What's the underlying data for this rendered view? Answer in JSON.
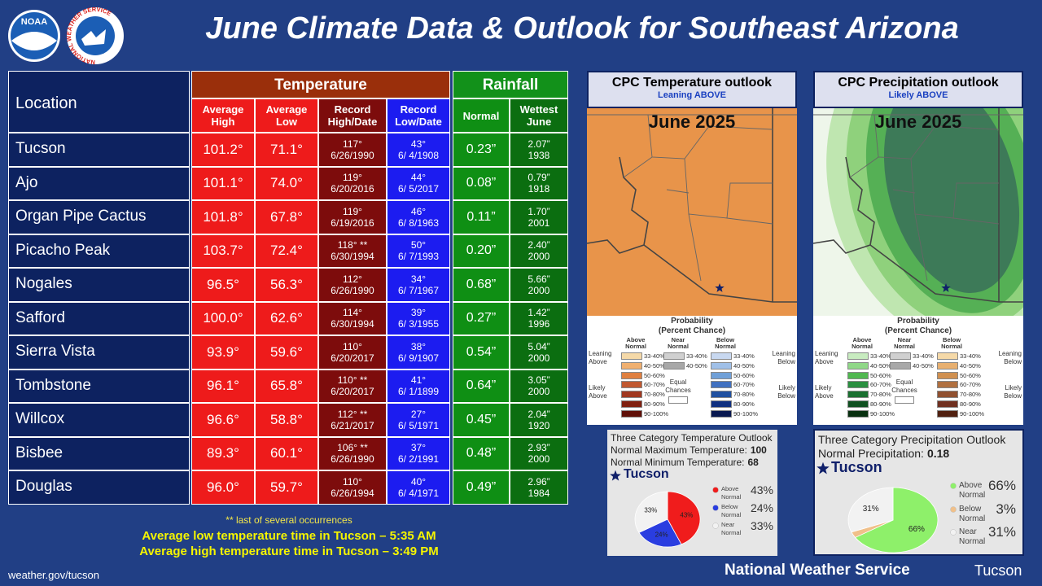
{
  "header": {
    "title": "June Climate Data & Outlook for Southeast Arizona",
    "logo_noaa": "NOAA",
    "logo_nws": "NATIONAL WEATHER SERVICE"
  },
  "table": {
    "location_header": "Location",
    "groups": [
      "Temperature",
      "Rainfall"
    ],
    "columns": [
      "Average High",
      "Average Low",
      "Record High/Date",
      "Record Low/Date",
      "Normal",
      "Wettest June"
    ],
    "rows": [
      [
        "Tucson",
        "101.2°",
        "71.1°",
        "117°",
        "6/26/1990",
        "43°",
        "6/ 4/1908",
        "0.23”",
        "2.07”",
        "1938"
      ],
      [
        "Ajo",
        "101.1°",
        "74.0°",
        "119°",
        "6/20/2016",
        "44°",
        "6/ 5/2017",
        "0.08”",
        "0.79”",
        "1918"
      ],
      [
        "Organ Pipe Cactus",
        "101.8°",
        "67.8°",
        "119°",
        "6/19/2016",
        "46°",
        "6/ 8/1963",
        "0.11”",
        "1.70”",
        "2001"
      ],
      [
        "Picacho Peak",
        "103.7°",
        "72.4°",
        "118° **",
        "6/30/1994",
        "50°",
        "6/ 7/1993",
        "0.20”",
        "2.40”",
        "2000"
      ],
      [
        "Nogales",
        "96.5°",
        "56.3°",
        "112°",
        "6/26/1990",
        "34°",
        "6/ 7/1967",
        "0.68”",
        "5.66”",
        "2000"
      ],
      [
        "Safford",
        "100.0°",
        "62.6°",
        "114°",
        "6/30/1994",
        "39°",
        "6/ 3/1955",
        "0.27”",
        "1.42”",
        "1996"
      ],
      [
        "Sierra Vista",
        "93.9°",
        "59.6°",
        "110°",
        "6/20/2017",
        "38°",
        "6/ 9/1907",
        "0.54”",
        "5.04”",
        "2000"
      ],
      [
        "Tombstone",
        "96.1°",
        "65.8°",
        "110° **",
        "6/20/2017",
        "41°",
        "6/ 1/1899",
        "0.64”",
        "3.05”",
        "2000"
      ],
      [
        "Willcox",
        "96.6°",
        "58.8°",
        "112° **",
        "6/21/2017",
        "27°",
        "6/ 5/1971",
        "0.45”",
        "2.04”",
        "1920"
      ],
      [
        "Bisbee",
        "89.3°",
        "60.1°",
        "106° **",
        "6/26/1990",
        "37°",
        "6/ 2/1991",
        "0.48”",
        "2.93”",
        "2000"
      ],
      [
        "Douglas",
        "96.0°",
        "59.7°",
        "110°",
        "6/26/1994",
        "40°",
        "6/ 4/1971",
        "0.49”",
        "2.96”",
        "1984"
      ]
    ]
  },
  "notes": [
    "** last of several occurrences",
    "Average low temperature time in Tucson – 5:35 AM",
    "Average high temperature time in Tucson – 3:49 PM"
  ],
  "footer": {
    "url": "weather.gov/tucson",
    "agency": "National Weather Service",
    "office": "Tucson"
  },
  "maps": [
    {
      "title": "CPC Temperature outlook",
      "subtitle": "Leaning ABOVE",
      "month": "June 2025",
      "legend": {
        "title": [
          "Probability",
          "(Percent Chance)"
        ],
        "columns": [
          "Above Normal",
          "Near Normal",
          "Below Normal"
        ],
        "above_ranges": [
          "33-40%",
          "40-50%",
          "50-60%",
          "60-70%",
          "70-80%",
          "80-90%",
          "90-100%"
        ],
        "above_colors": [
          "#f5d9a8",
          "#f0b070",
          "#e08040",
          "#c05830",
          "#a03820",
          "#802010",
          "#601008"
        ],
        "near_ranges": [
          "33-40%",
          "40-50%"
        ],
        "near_colors": [
          "#d0d0d0",
          "#a8a8a8"
        ],
        "below_ranges": [
          "33-40%",
          "40-50%",
          "50-60%",
          "60-70%",
          "70-80%",
          "80-90%",
          "90-100%"
        ],
        "below_colors": [
          "#c8d8f0",
          "#a0c0e8",
          "#70a0d8",
          "#4070c0",
          "#2050a0",
          "#103080",
          "#081850"
        ],
        "sides": [
          "Leaning Above",
          "Likely Above",
          "Equal Chances",
          "Leaning Below",
          "Likely Below"
        ]
      }
    },
    {
      "title": "CPC Precipitation outlook",
      "subtitle": "Likely ABOVE",
      "month": "June 2025",
      "legend": {
        "title": [
          "Probability",
          "(Percent Chance)"
        ],
        "columns": [
          "Above Normal",
          "Near Normal",
          "Below Normal"
        ],
        "above_ranges": [
          "33-40%",
          "40-50%",
          "50-60%",
          "60-70%",
          "70-80%",
          "80-90%",
          "90-100%"
        ],
        "above_colors": [
          "#c8ecc0",
          "#90d888",
          "#50b850",
          "#2a9040",
          "#1a7030",
          "#105020",
          "#083010"
        ],
        "near_ranges": [
          "33-40%",
          "40-50%"
        ],
        "near_colors": [
          "#d0d0d0",
          "#a8a8a8"
        ],
        "below_ranges": [
          "33-40%",
          "40-50%",
          "50-60%",
          "60-70%",
          "70-80%",
          "80-90%",
          "90-100%"
        ],
        "below_colors": [
          "#f5d9a8",
          "#e8b070",
          "#d09050",
          "#b07040",
          "#905030",
          "#703020",
          "#502010"
        ],
        "sides": [
          "Leaning Above",
          "Likely Above",
          "Equal Chances",
          "Leaning Below",
          "Likely Below"
        ]
      }
    }
  ],
  "chart_data": [
    {
      "type": "pie",
      "title": "Three Category Temperature Outlook",
      "notes": [
        {
          "label": "Normal Maximum Temperature:",
          "value": 100
        },
        {
          "label": "Normal Minimum Temperature:",
          "value": 68
        }
      ],
      "location": "Tucson",
      "categories": [
        "Above Normal",
        "Below Normal",
        "Near Normal"
      ],
      "values": [
        43,
        24,
        33
      ],
      "value_labels": [
        "43%",
        "24%",
        "33%"
      ],
      "colors": [
        "#f01c1c",
        "#2a3de0",
        "#f2f2f2"
      ]
    },
    {
      "type": "pie",
      "title": "Three Category Precipitation Outlook",
      "notes": [
        {
          "label": "Normal Precipitation:",
          "value": 0.18
        }
      ],
      "location": "Tucson",
      "categories": [
        "Above Normal",
        "Below Normal",
        "Near Normal"
      ],
      "values": [
        66,
        3,
        31
      ],
      "value_labels": [
        "66%",
        "3%",
        "31%"
      ],
      "colors": [
        "#8ef06a",
        "#f0c08a",
        "#f2f2f2"
      ]
    }
  ]
}
